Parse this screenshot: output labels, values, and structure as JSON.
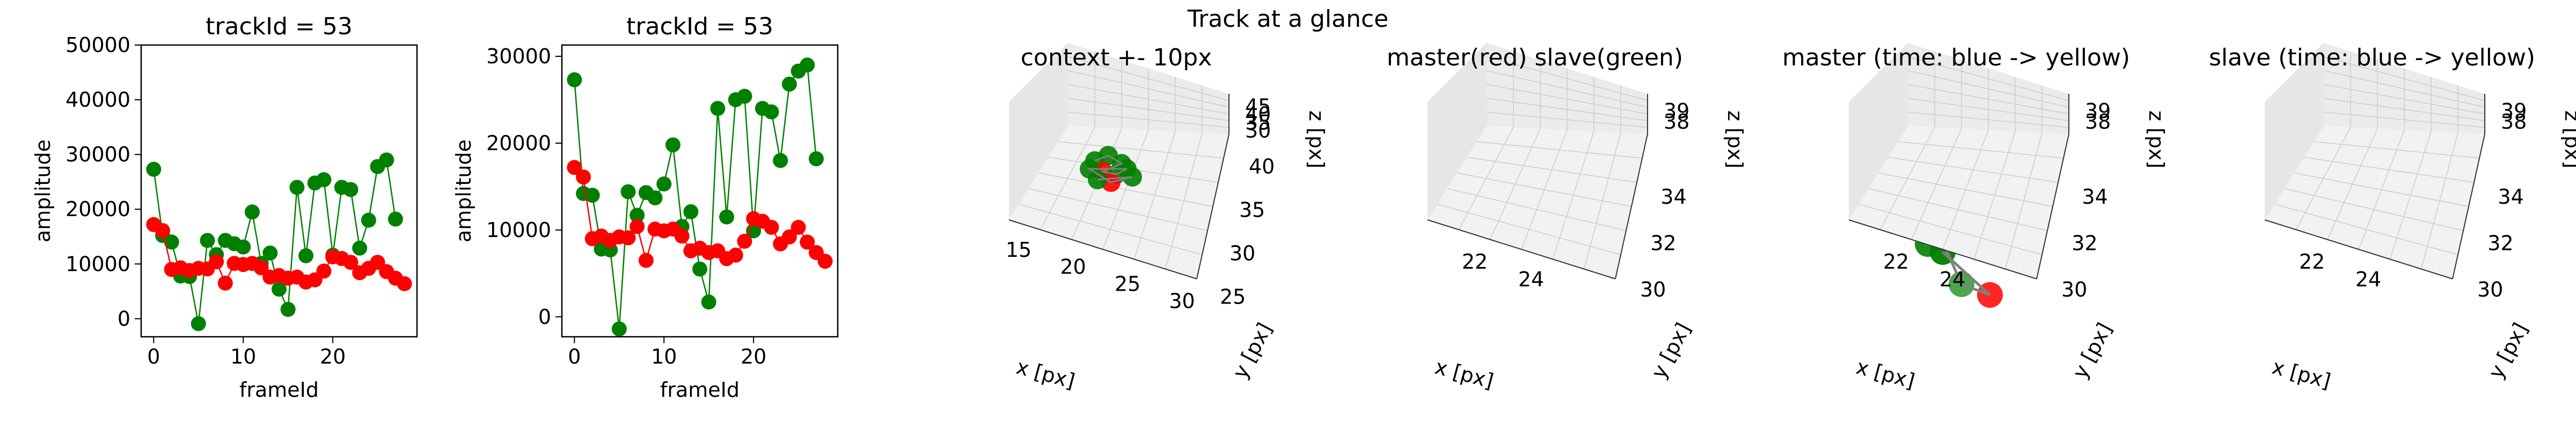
{
  "suptitle": "Track at a glance",
  "chart_data": [
    {
      "type": "line",
      "title": "trackId = 53",
      "xlabel": "frameId",
      "ylabel": "amplitude",
      "xlim": [
        -1.4,
        29.4
      ],
      "ylim": [
        -3300,
        50000
      ],
      "xticks": [
        0,
        10,
        20
      ],
      "yticks": [
        0,
        10000,
        20000,
        30000,
        40000,
        50000
      ],
      "series": [
        {
          "color": "#008000",
          "x": [
            0,
            1,
            2,
            3,
            4,
            5,
            6,
            7,
            8,
            9,
            10,
            11,
            12,
            13,
            14,
            15,
            16,
            17,
            18,
            19,
            20,
            21,
            22,
            23,
            24,
            25,
            26,
            27,
            28
          ],
          "y": [
            27300,
            15200,
            14000,
            7800,
            7700,
            -900,
            14300,
            11700,
            14300,
            13700,
            13100,
            19500,
            10100,
            12000,
            5400,
            1700,
            24000,
            11500,
            24800,
            25400,
            11600,
            24000,
            23600,
            12900,
            18000,
            27800,
            29000,
            18200,
            null
          ]
        },
        {
          "color": "#ff0000",
          "x": [
            0,
            1,
            2,
            3,
            4,
            5,
            6,
            7,
            8,
            9,
            10,
            11,
            12,
            13,
            14,
            15,
            16,
            17,
            18,
            19,
            20,
            21,
            22,
            23,
            24,
            25,
            26,
            27,
            28
          ],
          "y": [
            17200,
            16100,
            9000,
            9300,
            8800,
            9200,
            9100,
            10400,
            6500,
            10100,
            9900,
            10100,
            9300,
            7600,
            7900,
            7400,
            7600,
            6700,
            7100,
            8700,
            11300,
            11000,
            10300,
            8400,
            9200,
            10300,
            8600,
            7400,
            6400
          ]
        }
      ]
    },
    {
      "type": "line",
      "title": "trackId = 53",
      "xlabel": "frameId",
      "ylabel": "amplitude",
      "xlim": [
        -1.4,
        29.4
      ],
      "ylim": [
        -2300,
        31300
      ],
      "xticks": [
        0,
        10,
        20
      ],
      "yticks": [
        0,
        10000,
        20000,
        30000
      ],
      "series": [
        {
          "color": "#008000",
          "x": [
            0,
            1,
            2,
            3,
            4,
            5,
            6,
            7,
            8,
            9,
            10,
            11,
            12,
            13,
            14,
            15,
            16,
            17,
            18,
            19,
            20,
            21,
            22,
            23,
            24,
            25,
            26,
            27,
            28
          ],
          "y": [
            27300,
            14200,
            14000,
            7800,
            7700,
            -1400,
            14400,
            11700,
            14300,
            13700,
            15300,
            19800,
            10400,
            12100,
            5500,
            1700,
            24000,
            11500,
            25000,
            25400,
            9900,
            24000,
            23600,
            18000,
            26800,
            28300,
            29000,
            18200,
            null
          ]
        },
        {
          "color": "#ff0000",
          "x": [
            0,
            1,
            2,
            3,
            4,
            5,
            6,
            7,
            8,
            9,
            10,
            11,
            12,
            13,
            14,
            15,
            16,
            17,
            18,
            19,
            20,
            21,
            22,
            23,
            24,
            25,
            26,
            27,
            28
          ],
          "y": [
            17200,
            16100,
            9000,
            9300,
            8800,
            9200,
            9100,
            10400,
            6500,
            10100,
            9900,
            10100,
            9300,
            7600,
            7900,
            7400,
            7600,
            6700,
            7100,
            8700,
            11300,
            11000,
            10300,
            8400,
            9200,
            10300,
            8600,
            7400,
            6400
          ]
        }
      ]
    },
    {
      "type": "scatter",
      "title": "context +- 10px",
      "xlabel": "x [px]",
      "ylabel": "y [px]",
      "zlabel": "z [px]",
      "xticks": [
        "15",
        "20",
        "25",
        "30"
      ],
      "yticks": [
        "25",
        "30",
        "35",
        "40"
      ],
      "zticks": [
        "30",
        "35",
        "40",
        "45"
      ],
      "colors": [
        "#008000",
        "#ff0000",
        "#808080"
      ]
    },
    {
      "type": "scatter",
      "title": "master(red) slave(green)",
      "xlabel": "x [px]",
      "ylabel": "y [px]",
      "zlabel": "z [px]",
      "xticks": [
        "22",
        "24"
      ],
      "yticks": [
        "30",
        "32",
        "34"
      ],
      "zticks": [
        "38",
        "39"
      ],
      "colors": [
        "#ff0000",
        "#008000",
        "#808080"
      ]
    },
    {
      "type": "scatter",
      "title": "master (time: blue -> yellow)",
      "xlabel": "x [px]",
      "ylabel": "y [px]",
      "zlabel": "z [px]",
      "xticks": [
        "22",
        "24"
      ],
      "yticks": [
        "30",
        "32",
        "34"
      ],
      "zticks": [
        "38",
        "39"
      ],
      "colors": [
        "#0d0887",
        "#cc4778",
        "#f0f921",
        "#808080"
      ]
    },
    {
      "type": "scatter",
      "title": "slave (time: blue -> yellow)",
      "xlabel": "x [px]",
      "ylabel": "y [px]",
      "zlabel": "z [px]",
      "xticks": [
        "22",
        "24"
      ],
      "yticks": [
        "30",
        "32",
        "34"
      ],
      "zticks": [
        "38",
        "39"
      ],
      "colors": [
        "#0d0887",
        "#cc4778",
        "#f0f921",
        "#808080"
      ]
    }
  ]
}
